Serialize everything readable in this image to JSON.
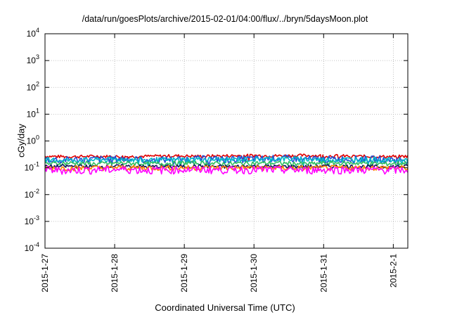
{
  "chart_data": {
    "type": "line",
    "title": "/data/run/goesPlots/archive/2015-02-01/04:00/flux/../bryn/5daysMoon.plot",
    "xlabel": "Coordinated Universal Time (UTC)",
    "ylabel": "cGy/day",
    "y_scale": "log",
    "ylim": [
      0.0001,
      10000
    ],
    "y_tick_labels": [
      {
        "base": "10",
        "exp": "-4",
        "value": 0.0001
      },
      {
        "base": "10",
        "exp": "-3",
        "value": 0.001
      },
      {
        "base": "10",
        "exp": "-2",
        "value": 0.01
      },
      {
        "base": "10",
        "exp": "-1",
        "value": 0.1
      },
      {
        "base": "10",
        "exp": "0",
        "value": 1
      },
      {
        "base": "10",
        "exp": "1",
        "value": 10
      },
      {
        "base": "10",
        "exp": "2",
        "value": 100
      },
      {
        "base": "10",
        "exp": "3",
        "value": 1000
      },
      {
        "base": "10",
        "exp": "4",
        "value": 10000
      }
    ],
    "xlim": [
      "2015-01-27",
      "2015-02-01 05:00"
    ],
    "x_ticks": [
      "2015-1-27",
      "2015-1-28",
      "2015-1-29",
      "2015-1-30",
      "2015-1-31",
      "2015-2-1"
    ],
    "grid": true,
    "legend": "none",
    "series": [
      {
        "color": "#e00000",
        "base": 0.27,
        "amp": 0.04,
        "values": [
          0.27,
          0.26,
          0.27,
          0.26,
          0.27,
          0.28,
          0.27,
          0.28,
          0.29,
          0.28,
          0.29,
          0.28,
          0.27,
          0.26,
          0.27
        ]
      },
      {
        "color": "#1f4fd6",
        "base": 0.215,
        "amp": 0.07,
        "values": [
          0.21,
          0.2,
          0.21,
          0.22,
          0.2,
          0.21,
          0.22,
          0.21,
          0.22,
          0.23,
          0.22,
          0.21,
          0.22,
          0.21,
          0.2
        ]
      },
      {
        "color": "#00b8c8",
        "base": 0.2,
        "amp": 0.05,
        "values": [
          0.2,
          0.19,
          0.2,
          0.21,
          0.19,
          0.2,
          0.21,
          0.2,
          0.21,
          0.22,
          0.21,
          0.2,
          0.21,
          0.2,
          0.19
        ]
      },
      {
        "color": "#30c060",
        "base": 0.145,
        "amp": 0.03,
        "values": [
          0.14,
          0.15,
          0.14,
          0.15,
          0.14,
          0.15,
          0.15,
          0.14,
          0.15,
          0.15,
          0.14,
          0.15,
          0.15,
          0.14,
          0.15
        ]
      },
      {
        "color": "#101060",
        "base": 0.113,
        "amp": 0.02,
        "values": [
          0.11,
          0.115,
          0.11,
          0.115,
          0.11,
          0.112,
          0.115,
          0.11,
          0.115,
          0.113,
          0.11,
          0.115,
          0.112,
          0.11,
          0.113
        ]
      },
      {
        "color": "#ff8000",
        "base": 0.1,
        "amp": 0.025,
        "values": [
          0.1,
          0.098,
          0.1,
          0.102,
          0.1,
          0.1,
          0.102,
          0.1,
          0.101,
          0.1,
          0.098,
          0.1,
          0.101,
          0.1,
          0.099
        ]
      },
      {
        "color": "#ff00ff",
        "base": 0.085,
        "amp": 0.03,
        "values": [
          0.085,
          0.08,
          0.085,
          0.088,
          0.082,
          0.085,
          0.087,
          0.084,
          0.086,
          0.085,
          0.083,
          0.086,
          0.085,
          0.084,
          0.083
        ]
      }
    ]
  }
}
